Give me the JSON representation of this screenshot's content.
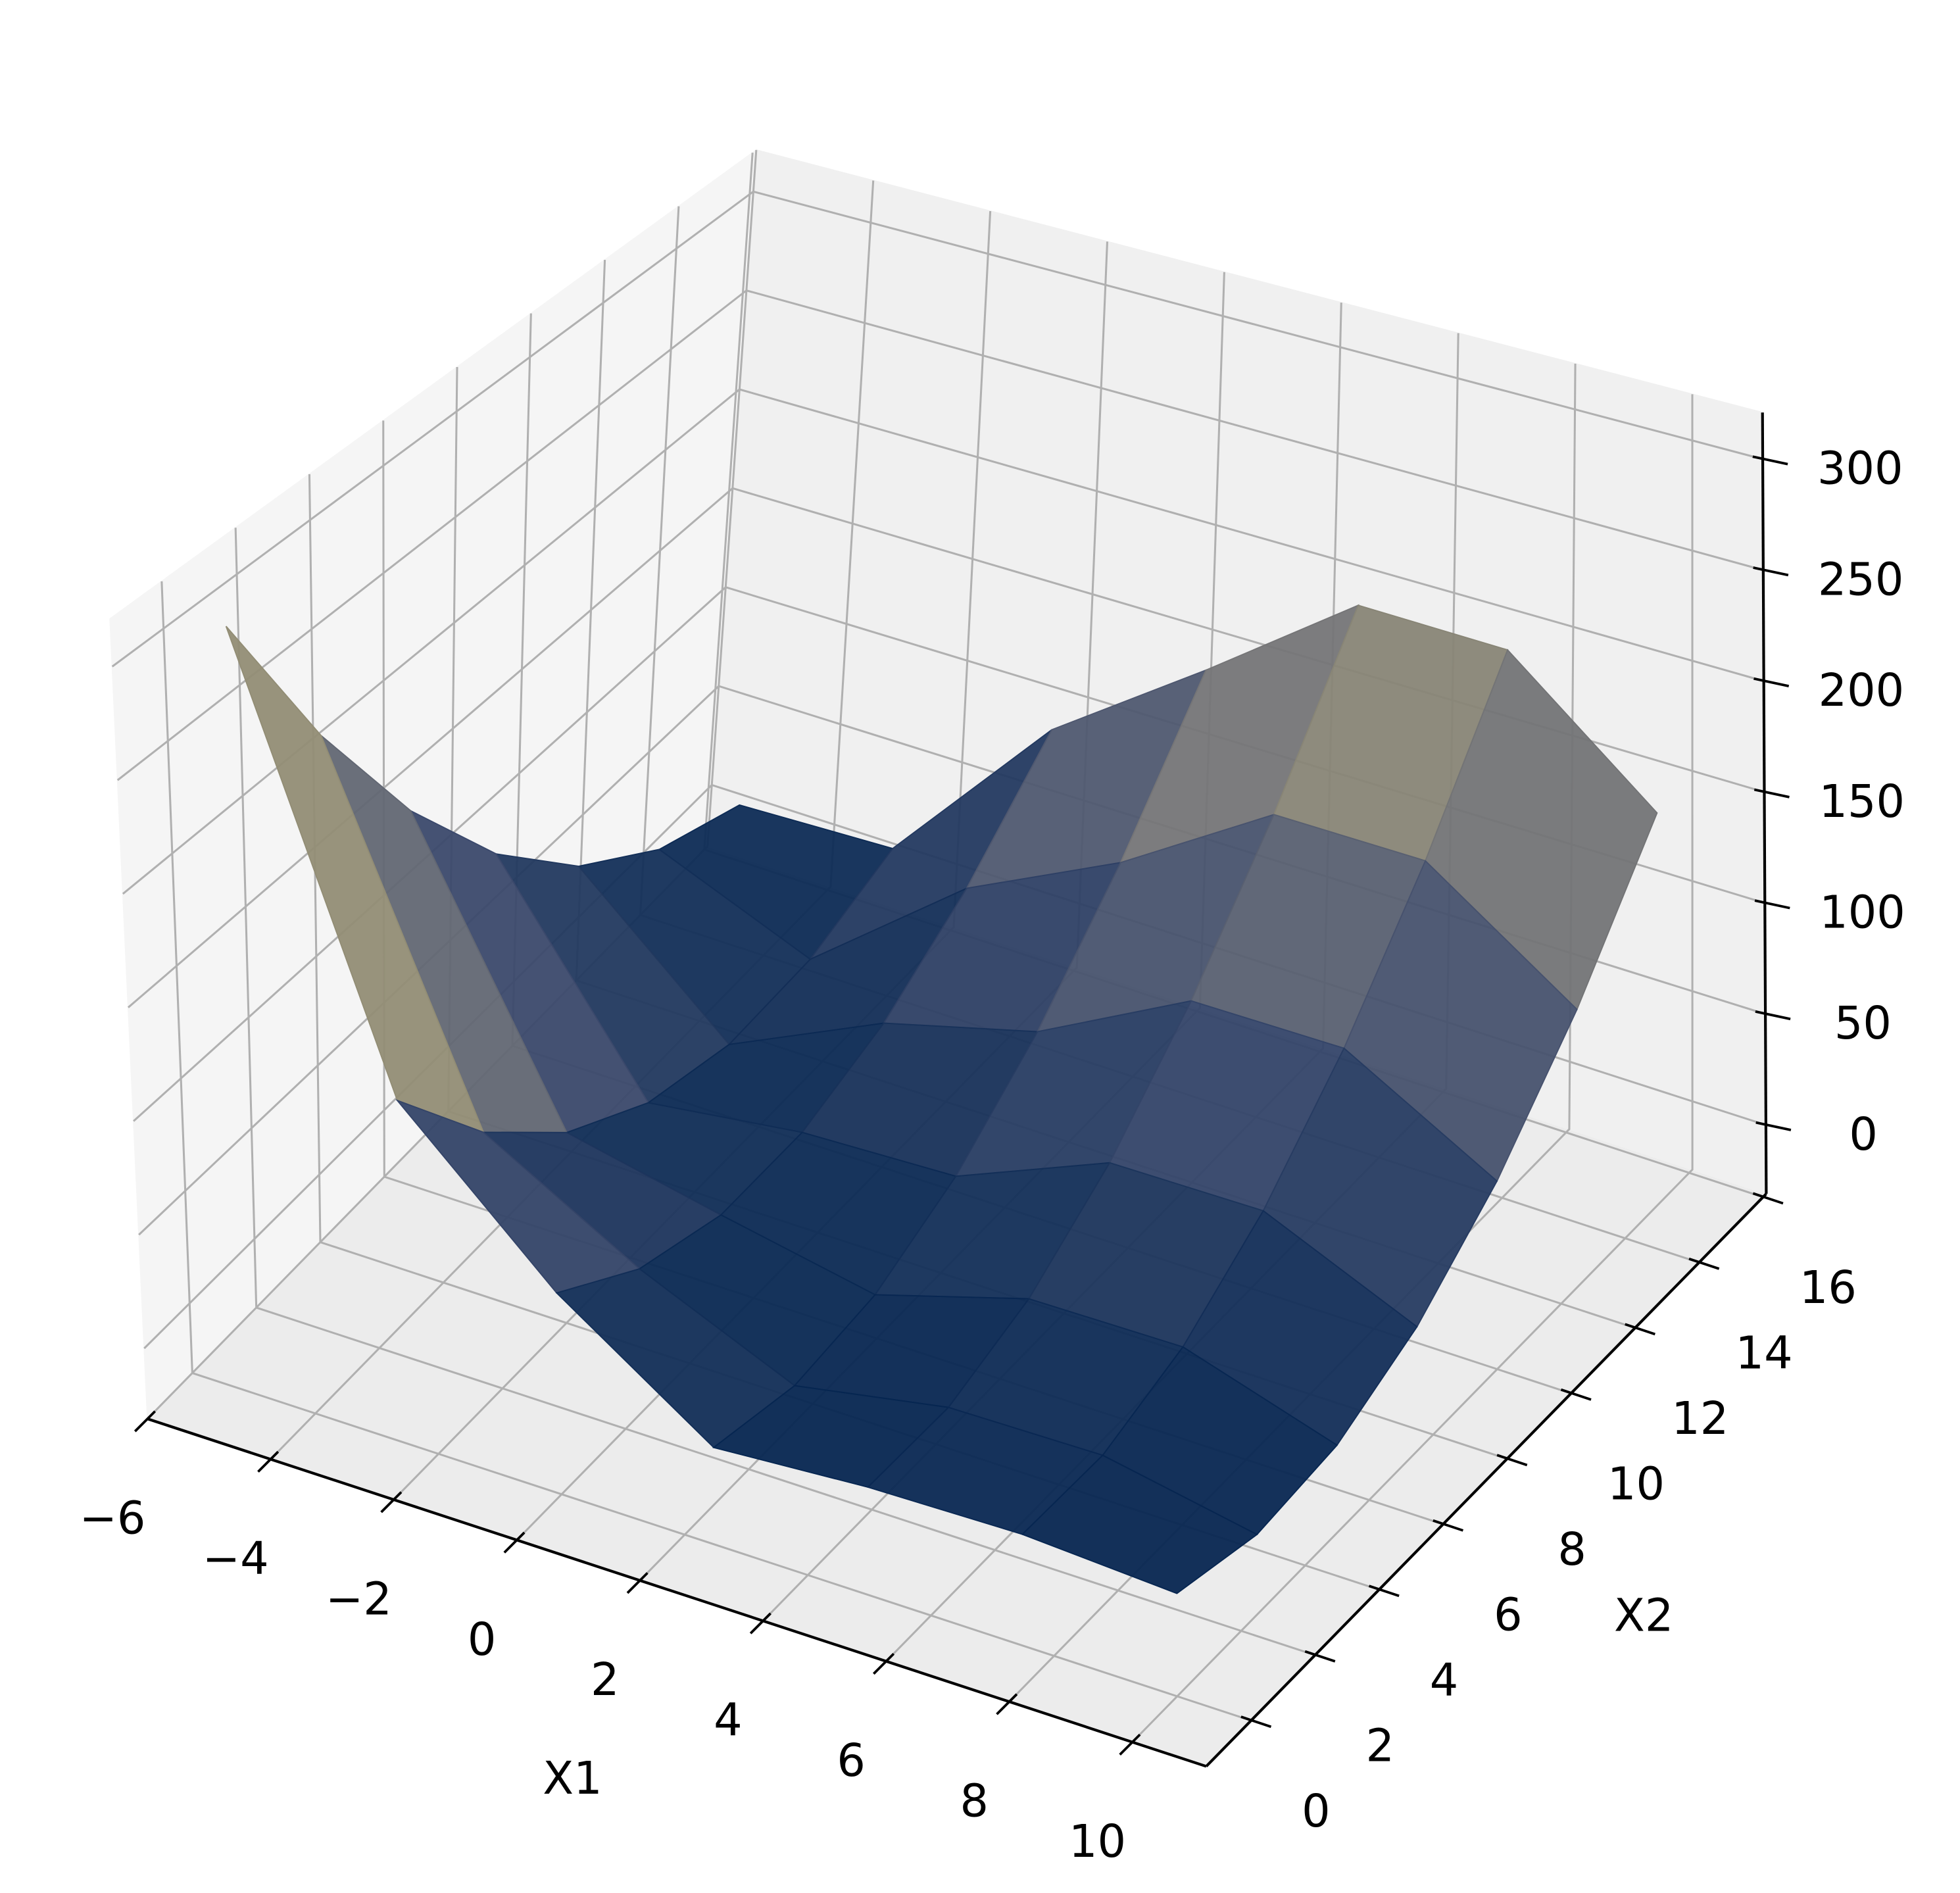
{
  "chart_data": {
    "type": "surface",
    "xlabel": "X1",
    "ylabel": "X2",
    "x": [
      -5,
      -2.5,
      0,
      2.5,
      5,
      7.5,
      10
    ],
    "y": [
      0,
      2.5,
      5,
      7.5,
      10,
      12.5,
      15
    ],
    "z": [
      [
        308.1,
        118.7,
        55.6,
        10.3,
        14.3,
        15.1,
        11.0
      ],
      [
        228.4,
        71.0,
        31.9,
        2.4,
        14.2,
        14.7,
        2.2
      ],
      [
        161.3,
        35.8,
        20.6,
        7.0,
        26.6,
        26.8,
        5.9
      ],
      [
        106.6,
        13.1,
        21.9,
        24.1,
        51.5,
        51.4,
        22.2
      ],
      [
        64.4,
        2.9,
        35.6,
        53.7,
        88.9,
        88.5,
        50.9
      ],
      [
        34.7,
        5.2,
        61.9,
        95.8,
        138.8,
        138.1,
        92.1
      ],
      [
        17.5,
        20.1,
        100.6,
        150.5,
        201.2,
        200.2,
        145.9
      ]
    ],
    "colormap": [
      "#00224e",
      "#3b496c",
      "#7c7b78",
      "#bcaf6f",
      "#fee838"
    ],
    "xlim": [
      -6,
      11.2
    ],
    "ylim": [
      -1.4,
      16.1
    ],
    "zlim": [
      -31,
      321
    ],
    "xticks": [
      {
        "value": -6,
        "label": "−6"
      },
      {
        "value": -4,
        "label": "−4"
      },
      {
        "value": -2,
        "label": "−2"
      },
      0,
      2,
      4,
      6,
      8,
      10
    ],
    "yticks": [
      0,
      2,
      4,
      6,
      8,
      10,
      12,
      14,
      16
    ],
    "zticks": [
      0,
      50,
      100,
      150,
      200,
      250,
      300
    ],
    "grid": true
  }
}
